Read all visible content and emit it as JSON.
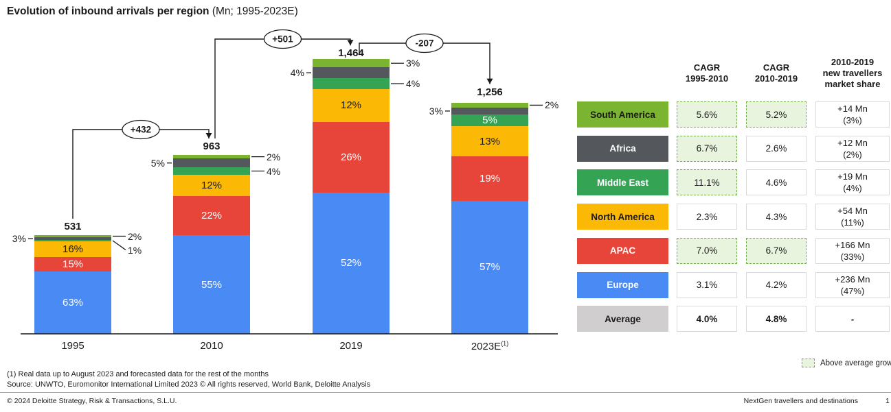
{
  "title": {
    "main": "Evolution of inbound arrivals per region",
    "suffix": " (Mn; 1995-2023E)"
  },
  "chart_data": {
    "type": "bar",
    "stacked": true,
    "unit": "Mn",
    "title": "Evolution of inbound arrivals per region (Mn; 1995-2023E)",
    "categories": [
      "1995",
      "2010",
      "2019",
      "2023E"
    ],
    "category_superscripts": [
      "",
      "",
      "",
      "(1)"
    ],
    "totals": [
      531,
      963,
      1464,
      1256
    ],
    "total_labels": [
      "531",
      "963",
      "1,464",
      "1,256"
    ],
    "series": [
      {
        "name": "Europe",
        "color": "#4a8af4",
        "text_color": "#ffffff",
        "pct": [
          63,
          55,
          52,
          57
        ]
      },
      {
        "name": "APAC",
        "color": "#e8453a",
        "text_color": "#ffffff",
        "pct": [
          15,
          22,
          26,
          19
        ]
      },
      {
        "name": "North America",
        "color": "#fbb905",
        "text_color": "#1a1a1a",
        "pct": [
          16,
          12,
          12,
          13
        ]
      },
      {
        "name": "Middle East",
        "color": "#34a353",
        "text_color": "#ffffff",
        "pct": [
          1,
          4,
          4,
          5
        ]
      },
      {
        "name": "Africa",
        "color": "#54585c",
        "text_color": "#ffffff",
        "pct": [
          3,
          5,
          4,
          3
        ]
      },
      {
        "name": "South America",
        "color": "#7ab431",
        "text_color": "#1a1a1a",
        "pct": [
          2,
          2,
          3,
          2
        ]
      }
    ],
    "deltas": [
      {
        "label": "+432",
        "from": 0,
        "to": 1
      },
      {
        "label": "+501",
        "from": 1,
        "to": 2
      },
      {
        "label": "-207",
        "from": 2,
        "to": 3
      }
    ]
  },
  "table": {
    "headers": [
      "CAGR\n1995-2010",
      "CAGR\n2010-2019",
      "2010-2019\nnew travellers\nmarket share"
    ],
    "rows": [
      {
        "region": "South America",
        "color": "#7ab431",
        "text_color": "#1a1a1a",
        "cagr1": "5.6%",
        "cagr1_hl": true,
        "cagr2": "5.2%",
        "cagr2_hl": true,
        "share": "+14 Mn\n(3%)"
      },
      {
        "region": "Africa",
        "color": "#54585c",
        "text_color": "#ffffff",
        "cagr1": "6.7%",
        "cagr1_hl": true,
        "cagr2": "2.6%",
        "cagr2_hl": false,
        "share": "+12 Mn\n(2%)"
      },
      {
        "region": "Middle East",
        "color": "#34a353",
        "text_color": "#ffffff",
        "cagr1": "11.1%",
        "cagr1_hl": true,
        "cagr2": "4.6%",
        "cagr2_hl": false,
        "share": "+19 Mn\n(4%)"
      },
      {
        "region": "North America",
        "color": "#fbb905",
        "text_color": "#1a1a1a",
        "cagr1": "2.3%",
        "cagr1_hl": false,
        "cagr2": "4.3%",
        "cagr2_hl": false,
        "share": "+54 Mn\n(11%)"
      },
      {
        "region": "APAC",
        "color": "#e8453a",
        "text_color": "#ffffff",
        "cagr1": "7.0%",
        "cagr1_hl": true,
        "cagr2": "6.7%",
        "cagr2_hl": true,
        "share": "+166 Mn\n(33%)"
      },
      {
        "region": "Europe",
        "color": "#4a8af4",
        "text_color": "#ffffff",
        "cagr1": "3.1%",
        "cagr1_hl": false,
        "cagr2": "4.2%",
        "cagr2_hl": false,
        "share": "+236 Mn\n(47%)"
      },
      {
        "region": "Average",
        "color": "#d0cece",
        "text_color": "#1a1a1a",
        "cagr1": "4.0%",
        "cagr1_hl": false,
        "cagr2": "4.8%",
        "cagr2_hl": false,
        "share": "-",
        "bold": true
      }
    ],
    "legend": "Above average growth"
  },
  "footnotes": [
    "(1) Real data up to August 2023 and forecasted data for the rest of the months",
    "Source: UNWTO, Euromonitor International Limited 2023 © All rights reserved, World Bank, Deloitte Analysis"
  ],
  "footer": {
    "left": "© 2024 Deloitte Strategy, Risk & Transactions, S.L.U.",
    "deck_title": "NextGen travellers and destinations",
    "page": "1"
  }
}
